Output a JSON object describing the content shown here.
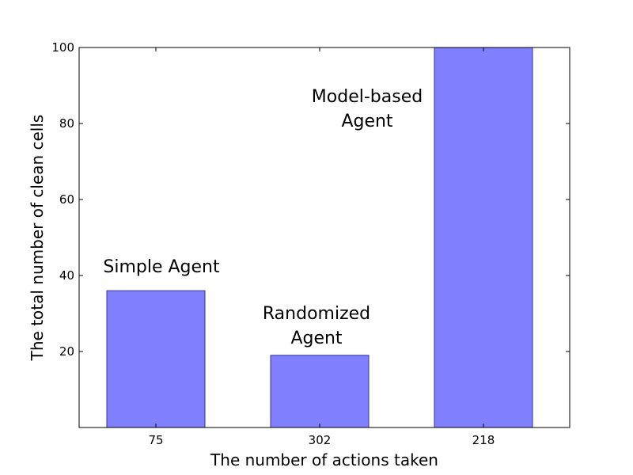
{
  "chart_data": {
    "type": "bar",
    "categories": [
      "75",
      "302",
      "218"
    ],
    "values": [
      36,
      19,
      100
    ],
    "annotations": [
      [
        "Simple Agent"
      ],
      [
        "Randomized",
        "Agent"
      ],
      [
        "Model-based",
        "Agent"
      ]
    ],
    "title": "",
    "xlabel": "The number of actions taken",
    "ylabel": "The total number of clean cells",
    "ylim": [
      0,
      100
    ],
    "yticks": [
      "20",
      "40",
      "60",
      "80",
      "100"
    ],
    "bar_color": "#8080ff",
    "bar_edge_color": "#333399",
    "grid": false,
    "legend": "none"
  }
}
